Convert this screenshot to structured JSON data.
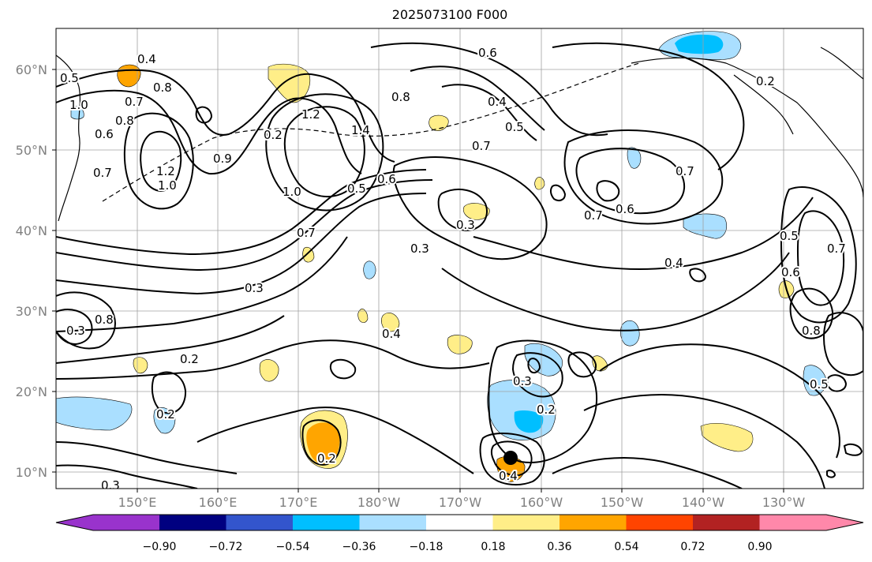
{
  "title": "2025073100 F000",
  "lat_labels": [
    "60°N",
    "50°N",
    "40°N",
    "30°N",
    "20°N",
    "10°N"
  ],
  "lon_labels": [
    "150°E",
    "160°E",
    "170°E",
    "180°W",
    "170°W",
    "160°W",
    "150°W",
    "140°W",
    "130°W"
  ],
  "colorbar": {
    "tick_labels": [
      "−0.90",
      "−0.72",
      "−0.54",
      "−0.36",
      "−0.18",
      "0.18",
      "0.36",
      "0.54",
      "0.72",
      "0.90"
    ],
    "colors": [
      "#9933cc",
      "#000080",
      "#3355cc",
      "#00bfff",
      "#aadfff",
      "#ffffff",
      "#ffee88",
      "#ffa500",
      "#ff4400",
      "#b22222",
      "#ff88aa"
    ]
  },
  "contour_labels": [
    "0.4",
    "0.5",
    "0.8",
    "0.7",
    "0.8",
    "1.0",
    "0.6",
    "0.7",
    "0.9",
    "1.2",
    "1.0",
    "0.2",
    "1.2",
    "1.4",
    "1.0",
    "0.8",
    "0.6",
    "0.4",
    "0.5",
    "0.7",
    "0.5",
    "0.6",
    "0.7",
    "0.7",
    "0.6",
    "0.3",
    "0.4",
    "0.2",
    "0.7",
    "0.5",
    "0.6",
    "0.7",
    "0.8",
    "0.3",
    "0.3",
    "0.8",
    "0.3",
    "0.4",
    "0.2",
    "0.3",
    "0.2",
    "0.4",
    "0.2",
    "0.3",
    "0.2",
    "0.5"
  ],
  "storm_marker": {
    "lat": 12.0,
    "lon": "165°W"
  }
}
